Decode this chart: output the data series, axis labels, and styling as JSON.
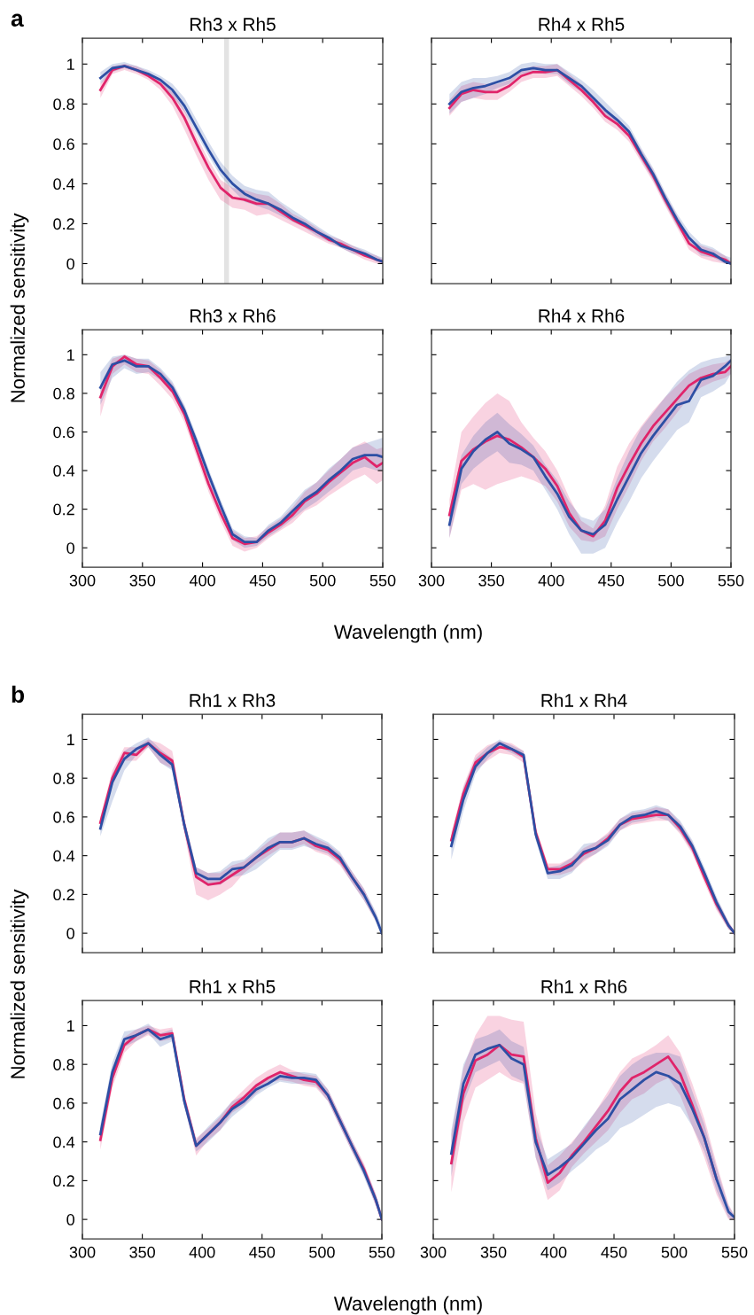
{
  "chart_data": [
    {
      "type": "line",
      "title": "Rh3 x Rh5",
      "ylabel": "Normalized sensitivity",
      "annotations": [
        "a"
      ],
      "xlim": [
        300,
        550
      ],
      "ylim": [
        -0.1,
        1.13
      ],
      "xticks": [
        300,
        350,
        400,
        450,
        500,
        550
      ],
      "yticks": [
        0,
        0.2,
        0.4,
        0.6,
        0.8,
        1
      ],
      "tick_labels": "y",
      "x": [
        315,
        325,
        335,
        345,
        355,
        365,
        375,
        385,
        395,
        405,
        415,
        425,
        435,
        445,
        455,
        465,
        475,
        485,
        495,
        505,
        515,
        525,
        535,
        545,
        550
      ],
      "bands": [
        {
          "axis": "x",
          "from": 418,
          "to": 422,
          "color": "#e3e3e3"
        }
      ],
      "series": [
        {
          "color": "#e0246a",
          "values": [
            0.87,
            0.97,
            0.99,
            0.97,
            0.94,
            0.9,
            0.83,
            0.73,
            0.6,
            0.48,
            0.38,
            0.33,
            0.32,
            0.3,
            0.3,
            0.26,
            0.22,
            0.19,
            0.16,
            0.12,
            0.1,
            0.07,
            0.04,
            0.02,
            0.01
          ],
          "lower": [
            0.83,
            0.95,
            0.97,
            0.95,
            0.92,
            0.87,
            0.79,
            0.67,
            0.54,
            0.42,
            0.32,
            0.28,
            0.27,
            0.24,
            0.25,
            0.22,
            0.19,
            0.16,
            0.13,
            0.1,
            0.08,
            0.05,
            0.02,
            0.0,
            0.0
          ],
          "upper": [
            0.9,
            0.99,
            1.0,
            0.99,
            0.96,
            0.92,
            0.86,
            0.77,
            0.64,
            0.52,
            0.42,
            0.38,
            0.37,
            0.35,
            0.34,
            0.3,
            0.25,
            0.22,
            0.18,
            0.14,
            0.12,
            0.09,
            0.06,
            0.04,
            0.02
          ]
        },
        {
          "color": "#2d4fa4",
          "values": [
            0.93,
            0.98,
            0.99,
            0.97,
            0.95,
            0.92,
            0.87,
            0.79,
            0.68,
            0.57,
            0.47,
            0.4,
            0.35,
            0.32,
            0.3,
            0.27,
            0.23,
            0.2,
            0.16,
            0.13,
            0.09,
            0.07,
            0.05,
            0.02,
            0.01
          ],
          "lower": [
            0.9,
            0.96,
            0.98,
            0.96,
            0.94,
            0.9,
            0.84,
            0.76,
            0.65,
            0.54,
            0.44,
            0.37,
            0.31,
            0.29,
            0.27,
            0.24,
            0.21,
            0.18,
            0.14,
            0.11,
            0.08,
            0.05,
            0.04,
            0.01,
            0.0
          ],
          "upper": [
            0.96,
            1.0,
            1.01,
            0.99,
            0.97,
            0.94,
            0.9,
            0.83,
            0.72,
            0.61,
            0.51,
            0.44,
            0.39,
            0.37,
            0.36,
            0.31,
            0.27,
            0.23,
            0.19,
            0.15,
            0.12,
            0.09,
            0.07,
            0.04,
            0.03
          ]
        }
      ]
    },
    {
      "type": "line",
      "title": "Rh4 x Rh5",
      "xlim": [
        300,
        550
      ],
      "ylim": [
        -0.1,
        1.13
      ],
      "xticks": [
        300,
        350,
        400,
        450,
        500,
        550
      ],
      "yticks": [
        0,
        0.2,
        0.4,
        0.6,
        0.8,
        1
      ],
      "tick_labels": false,
      "x": [
        315,
        325,
        335,
        345,
        355,
        365,
        375,
        385,
        395,
        405,
        415,
        425,
        435,
        445,
        455,
        465,
        475,
        485,
        495,
        505,
        515,
        525,
        535,
        545,
        550
      ],
      "series": [
        {
          "color": "#e0246a",
          "values": [
            0.78,
            0.85,
            0.87,
            0.86,
            0.86,
            0.89,
            0.94,
            0.96,
            0.96,
            0.97,
            0.92,
            0.87,
            0.81,
            0.74,
            0.7,
            0.64,
            0.54,
            0.44,
            0.32,
            0.21,
            0.1,
            0.06,
            0.04,
            0.02,
            0.0
          ],
          "lower": [
            0.74,
            0.81,
            0.83,
            0.82,
            0.82,
            0.86,
            0.91,
            0.93,
            0.93,
            0.94,
            0.89,
            0.84,
            0.78,
            0.71,
            0.67,
            0.61,
            0.51,
            0.41,
            0.29,
            0.18,
            0.07,
            0.03,
            0.01,
            0.0,
            0.0
          ],
          "upper": [
            0.82,
            0.89,
            0.91,
            0.9,
            0.9,
            0.92,
            0.97,
            0.99,
            0.99,
            1.0,
            0.95,
            0.9,
            0.84,
            0.77,
            0.73,
            0.67,
            0.57,
            0.47,
            0.35,
            0.24,
            0.13,
            0.09,
            0.07,
            0.04,
            0.01
          ]
        },
        {
          "color": "#2d4fa4",
          "values": [
            0.8,
            0.86,
            0.88,
            0.89,
            0.91,
            0.93,
            0.97,
            0.98,
            0.97,
            0.97,
            0.93,
            0.89,
            0.83,
            0.77,
            0.72,
            0.66,
            0.55,
            0.45,
            0.33,
            0.22,
            0.13,
            0.07,
            0.05,
            0.01,
            0.0
          ],
          "lower": [
            0.75,
            0.81,
            0.83,
            0.85,
            0.88,
            0.9,
            0.95,
            0.96,
            0.95,
            0.95,
            0.9,
            0.86,
            0.8,
            0.74,
            0.69,
            0.63,
            0.52,
            0.42,
            0.3,
            0.19,
            0.1,
            0.04,
            0.03,
            0.0,
            0.0
          ],
          "upper": [
            0.85,
            0.91,
            0.93,
            0.93,
            0.94,
            0.96,
            1.0,
            1.01,
            1.0,
            1.0,
            0.96,
            0.92,
            0.87,
            0.81,
            0.75,
            0.69,
            0.58,
            0.48,
            0.36,
            0.25,
            0.16,
            0.1,
            0.08,
            0.04,
            0.03
          ]
        }
      ]
    },
    {
      "type": "line",
      "title": "Rh3 x Rh6",
      "xlabel": "Wavelength (nm)",
      "xlim": [
        300,
        550
      ],
      "ylim": [
        -0.1,
        1.13
      ],
      "xticks": [
        300,
        350,
        400,
        450,
        500,
        550
      ],
      "yticks": [
        0,
        0.2,
        0.4,
        0.6,
        0.8,
        1
      ],
      "x": [
        315,
        325,
        335,
        345,
        355,
        365,
        375,
        385,
        395,
        405,
        415,
        425,
        435,
        445,
        455,
        465,
        475,
        485,
        495,
        505,
        515,
        525,
        535,
        545,
        550
      ],
      "series": [
        {
          "color": "#e0246a",
          "values": [
            0.78,
            0.94,
            0.99,
            0.95,
            0.94,
            0.88,
            0.81,
            0.69,
            0.51,
            0.33,
            0.18,
            0.05,
            0.02,
            0.03,
            0.08,
            0.12,
            0.17,
            0.24,
            0.28,
            0.34,
            0.39,
            0.44,
            0.47,
            0.42,
            0.44
          ],
          "lower": [
            0.68,
            0.9,
            0.95,
            0.91,
            0.9,
            0.84,
            0.77,
            0.65,
            0.47,
            0.29,
            0.14,
            0.01,
            -0.02,
            0.0,
            0.05,
            0.09,
            0.13,
            0.19,
            0.22,
            0.27,
            0.31,
            0.35,
            0.38,
            0.33,
            0.35
          ],
          "upper": [
            0.84,
            0.98,
            1.0,
            0.98,
            0.97,
            0.92,
            0.85,
            0.73,
            0.55,
            0.37,
            0.22,
            0.09,
            0.05,
            0.06,
            0.11,
            0.15,
            0.21,
            0.29,
            0.34,
            0.4,
            0.46,
            0.52,
            0.55,
            0.51,
            0.52
          ]
        },
        {
          "color": "#2d4fa4",
          "values": [
            0.83,
            0.95,
            0.97,
            0.94,
            0.94,
            0.9,
            0.83,
            0.71,
            0.55,
            0.38,
            0.22,
            0.07,
            0.03,
            0.03,
            0.09,
            0.13,
            0.19,
            0.25,
            0.29,
            0.35,
            0.4,
            0.46,
            0.48,
            0.48,
            0.47
          ],
          "lower": [
            0.74,
            0.88,
            0.93,
            0.9,
            0.91,
            0.87,
            0.8,
            0.68,
            0.52,
            0.35,
            0.19,
            0.04,
            0.0,
            0.01,
            0.06,
            0.1,
            0.15,
            0.2,
            0.24,
            0.29,
            0.34,
            0.4,
            0.42,
            0.4,
            0.4
          ],
          "upper": [
            0.91,
            0.99,
            1.0,
            0.98,
            0.98,
            0.93,
            0.86,
            0.74,
            0.58,
            0.41,
            0.25,
            0.1,
            0.06,
            0.05,
            0.12,
            0.16,
            0.23,
            0.3,
            0.34,
            0.41,
            0.46,
            0.52,
            0.54,
            0.56,
            0.57
          ]
        }
      ]
    },
    {
      "type": "line",
      "title": "Rh4 x Rh6",
      "xlim": [
        300,
        550
      ],
      "ylim": [
        -0.1,
        1.13
      ],
      "xticks": [
        300,
        350,
        400,
        450,
        500,
        550
      ],
      "yticks": [
        0,
        0.2,
        0.4,
        0.6,
        0.8,
        1
      ],
      "tick_labels": "x",
      "x": [
        315,
        325,
        335,
        345,
        355,
        365,
        375,
        385,
        395,
        405,
        415,
        425,
        435,
        445,
        455,
        465,
        475,
        485,
        495,
        505,
        515,
        525,
        535,
        545,
        550
      ],
      "series": [
        {
          "color": "#e0246a",
          "values": [
            0.17,
            0.45,
            0.51,
            0.55,
            0.58,
            0.56,
            0.52,
            0.47,
            0.41,
            0.32,
            0.18,
            0.09,
            0.06,
            0.14,
            0.31,
            0.43,
            0.54,
            0.63,
            0.7,
            0.77,
            0.84,
            0.88,
            0.9,
            0.91,
            0.94
          ],
          "lower": [
            0.05,
            0.3,
            0.33,
            0.3,
            0.33,
            0.35,
            0.37,
            0.35,
            0.32,
            0.24,
            0.11,
            0.04,
            0.03,
            0.06,
            0.2,
            0.32,
            0.45,
            0.55,
            0.62,
            0.7,
            0.78,
            0.83,
            0.86,
            0.88,
            0.9
          ],
          "upper": [
            0.25,
            0.6,
            0.68,
            0.75,
            0.8,
            0.76,
            0.65,
            0.57,
            0.5,
            0.4,
            0.26,
            0.14,
            0.1,
            0.22,
            0.42,
            0.54,
            0.63,
            0.71,
            0.78,
            0.84,
            0.9,
            0.93,
            0.95,
            0.96,
            0.98
          ]
        },
        {
          "color": "#2d4fa4",
          "values": [
            0.12,
            0.41,
            0.5,
            0.56,
            0.6,
            0.54,
            0.51,
            0.47,
            0.37,
            0.28,
            0.16,
            0.09,
            0.07,
            0.12,
            0.25,
            0.37,
            0.49,
            0.58,
            0.66,
            0.74,
            0.76,
            0.87,
            0.89,
            0.94,
            0.97
          ],
          "lower": [
            0.05,
            0.33,
            0.41,
            0.46,
            0.5,
            0.44,
            0.43,
            0.4,
            0.3,
            0.2,
            0.07,
            -0.03,
            -0.03,
            0.0,
            0.13,
            0.24,
            0.36,
            0.45,
            0.53,
            0.61,
            0.65,
            0.78,
            0.81,
            0.85,
            0.9
          ],
          "upper": [
            0.2,
            0.48,
            0.58,
            0.65,
            0.7,
            0.64,
            0.59,
            0.53,
            0.43,
            0.35,
            0.24,
            0.16,
            0.14,
            0.2,
            0.36,
            0.5,
            0.62,
            0.7,
            0.78,
            0.86,
            0.92,
            0.96,
            0.98,
            0.99,
            1.0
          ]
        }
      ]
    },
    {
      "type": "line",
      "title": "Rh1 x Rh3",
      "ylabel": "Normalized sensitivity",
      "annotations": [
        "b"
      ],
      "xlim": [
        300,
        550
      ],
      "ylim": [
        -0.1,
        1.13
      ],
      "xticks": [
        300,
        350,
        400,
        450,
        500,
        550
      ],
      "yticks": [
        0,
        0.2,
        0.4,
        0.6,
        0.8,
        1
      ],
      "tick_labels": "y",
      "x": [
        315,
        325,
        335,
        345,
        355,
        365,
        375,
        385,
        395,
        405,
        415,
        425,
        435,
        445,
        455,
        465,
        475,
        485,
        495,
        505,
        515,
        525,
        535,
        545,
        550
      ],
      "series": [
        {
          "color": "#e0246a",
          "values": [
            0.57,
            0.8,
            0.93,
            0.92,
            0.98,
            0.93,
            0.89,
            0.56,
            0.29,
            0.25,
            0.26,
            0.3,
            0.34,
            0.39,
            0.43,
            0.47,
            0.47,
            0.49,
            0.45,
            0.43,
            0.38,
            0.29,
            0.2,
            null,
            null
          ],
          "lower": [
            0.54,
            0.76,
            0.89,
            0.89,
            0.96,
            0.88,
            0.85,
            0.52,
            0.2,
            0.17,
            0.2,
            0.24,
            0.31,
            0.36,
            0.4,
            0.44,
            0.44,
            0.46,
            0.42,
            0.4,
            0.35,
            0.26,
            0.17,
            0.06,
            0.0
          ],
          "upper": [
            0.6,
            0.84,
            0.96,
            0.96,
            1.0,
            0.98,
            0.94,
            0.6,
            0.34,
            0.31,
            0.31,
            0.35,
            0.37,
            0.42,
            0.47,
            0.52,
            0.52,
            0.53,
            0.49,
            0.46,
            0.41,
            0.32,
            0.23,
            0.1,
            0.01
          ]
        },
        {
          "color": "#2d4fa4",
          "values": [
            0.54,
            0.78,
            0.9,
            0.95,
            0.98,
            0.92,
            0.87,
            0.56,
            0.31,
            0.28,
            0.28,
            0.33,
            0.34,
            0.39,
            0.44,
            0.47,
            0.47,
            0.49,
            0.46,
            0.44,
            0.39,
            0.29,
            0.2,
            0.08,
            0.0
          ],
          "lower": [
            0.5,
            0.68,
            0.84,
            0.92,
            0.96,
            0.88,
            0.84,
            0.53,
            0.28,
            0.25,
            0.25,
            0.29,
            0.3,
            0.33,
            0.38,
            0.43,
            0.43,
            0.45,
            0.43,
            0.41,
            0.36,
            0.26,
            0.17,
            0.06,
            0.0
          ],
          "upper": [
            0.58,
            0.82,
            0.94,
            0.98,
            1.01,
            0.95,
            0.9,
            0.59,
            0.34,
            0.31,
            0.32,
            0.37,
            0.38,
            0.43,
            0.49,
            0.52,
            0.52,
            0.53,
            0.5,
            0.47,
            0.42,
            0.32,
            0.23,
            0.11,
            0.03
          ]
        }
      ]
    },
    {
      "type": "line",
      "title": "Rh1 x Rh4",
      "xlim": [
        300,
        550
      ],
      "ylim": [
        -0.1,
        1.13
      ],
      "xticks": [
        300,
        350,
        400,
        450,
        500,
        550
      ],
      "yticks": [
        0,
        0.2,
        0.4,
        0.6,
        0.8,
        1
      ],
      "tick_labels": false,
      "x": [
        315,
        325,
        335,
        345,
        355,
        365,
        375,
        385,
        395,
        405,
        415,
        425,
        435,
        445,
        455,
        465,
        475,
        485,
        495,
        505,
        515,
        525,
        535,
        545,
        550
      ],
      "series": [
        {
          "color": "#e0246a",
          "values": [
            0.48,
            0.72,
            0.88,
            0.93,
            0.96,
            0.95,
            0.91,
            0.52,
            0.33,
            0.33,
            0.36,
            0.41,
            0.44,
            0.49,
            0.56,
            0.59,
            0.6,
            0.61,
            0.61,
            0.54,
            0.44,
            0.29,
            0.15,
            0.04,
            0.0
          ],
          "lower": [
            0.44,
            0.68,
            0.84,
            0.89,
            0.93,
            0.92,
            0.88,
            0.49,
            0.3,
            0.3,
            0.32,
            0.37,
            0.41,
            0.46,
            0.53,
            0.56,
            0.57,
            0.58,
            0.58,
            0.51,
            0.41,
            0.26,
            0.12,
            0.02,
            0.0
          ],
          "upper": [
            0.52,
            0.76,
            0.92,
            0.97,
            0.99,
            0.98,
            0.94,
            0.55,
            0.36,
            0.36,
            0.39,
            0.44,
            0.47,
            0.52,
            0.59,
            0.62,
            0.63,
            0.65,
            0.64,
            0.57,
            0.47,
            0.32,
            0.18,
            0.06,
            0.01
          ]
        },
        {
          "color": "#2d4fa4",
          "values": [
            0.45,
            0.69,
            0.86,
            0.93,
            0.98,
            0.95,
            0.92,
            0.51,
            0.31,
            0.32,
            0.35,
            0.42,
            0.44,
            0.48,
            0.56,
            0.6,
            0.61,
            0.63,
            0.61,
            0.55,
            0.45,
            0.31,
            0.16,
            0.04,
            0.0
          ],
          "lower": [
            0.38,
            0.63,
            0.82,
            0.9,
            0.96,
            0.93,
            0.9,
            0.48,
            0.28,
            0.28,
            0.31,
            0.38,
            0.41,
            0.45,
            0.53,
            0.57,
            0.58,
            0.6,
            0.58,
            0.52,
            0.42,
            0.28,
            0.13,
            0.02,
            0.0
          ],
          "upper": [
            0.5,
            0.75,
            0.9,
            0.96,
            1.0,
            0.97,
            0.94,
            0.54,
            0.34,
            0.35,
            0.39,
            0.46,
            0.47,
            0.51,
            0.59,
            0.63,
            0.64,
            0.66,
            0.64,
            0.58,
            0.48,
            0.34,
            0.19,
            0.06,
            0.01
          ]
        }
      ]
    },
    {
      "type": "line",
      "title": "Rh1 x Rh5",
      "xlabel": "Wavelength (nm)",
      "xlim": [
        300,
        550
      ],
      "ylim": [
        -0.1,
        1.13
      ],
      "xticks": [
        300,
        350,
        400,
        450,
        500,
        550
      ],
      "yticks": [
        0,
        0.2,
        0.4,
        0.6,
        0.8,
        1
      ],
      "x": [
        315,
        325,
        335,
        345,
        355,
        365,
        375,
        385,
        395,
        405,
        415,
        425,
        435,
        445,
        455,
        465,
        475,
        485,
        495,
        505,
        515,
        525,
        535,
        545,
        550
      ],
      "series": [
        {
          "color": "#e0246a",
          "values": [
            0.41,
            0.73,
            0.9,
            0.95,
            0.98,
            0.95,
            0.96,
            0.62,
            0.38,
            0.44,
            0.5,
            0.58,
            0.63,
            0.69,
            0.73,
            0.76,
            0.74,
            0.72,
            0.71,
            0.64,
            0.51,
            0.38,
            0.26,
            0.1,
            0.0
          ],
          "lower": [
            0.36,
            0.68,
            0.86,
            0.92,
            0.95,
            0.92,
            0.93,
            0.59,
            0.33,
            0.41,
            0.46,
            0.55,
            0.59,
            0.65,
            0.7,
            0.72,
            0.71,
            0.69,
            0.68,
            0.61,
            0.48,
            0.35,
            0.23,
            0.07,
            0.0
          ],
          "upper": [
            0.46,
            0.78,
            0.94,
            0.98,
            1.0,
            0.98,
            0.99,
            0.65,
            0.42,
            0.47,
            0.53,
            0.61,
            0.67,
            0.73,
            0.77,
            0.8,
            0.77,
            0.75,
            0.74,
            0.67,
            0.54,
            0.41,
            0.29,
            0.13,
            0.01
          ]
        },
        {
          "color": "#2d4fa4",
          "values": [
            0.44,
            0.76,
            0.93,
            0.95,
            0.98,
            0.93,
            0.95,
            0.61,
            0.38,
            0.44,
            0.5,
            0.57,
            0.61,
            0.67,
            0.7,
            0.74,
            0.73,
            0.73,
            0.72,
            0.64,
            0.51,
            0.38,
            0.25,
            0.1,
            0.0
          ],
          "lower": [
            0.4,
            0.71,
            0.89,
            0.92,
            0.96,
            0.89,
            0.92,
            0.58,
            0.35,
            0.4,
            0.46,
            0.53,
            0.58,
            0.64,
            0.68,
            0.71,
            0.7,
            0.7,
            0.69,
            0.61,
            0.48,
            0.35,
            0.22,
            0.07,
            0.0
          ],
          "upper": [
            0.49,
            0.81,
            0.97,
            0.98,
            1.01,
            0.96,
            0.98,
            0.64,
            0.41,
            0.48,
            0.54,
            0.61,
            0.64,
            0.7,
            0.73,
            0.76,
            0.76,
            0.76,
            0.75,
            0.67,
            0.54,
            0.41,
            0.28,
            0.13,
            0.03
          ]
        }
      ]
    },
    {
      "type": "line",
      "title": "Rh1 x Rh6",
      "xlim": [
        300,
        550
      ],
      "ylim": [
        -0.1,
        1.13
      ],
      "xticks": [
        300,
        350,
        400,
        450,
        500,
        550
      ],
      "yticks": [
        0,
        0.2,
        0.4,
        0.6,
        0.8,
        1
      ],
      "tick_labels": "x",
      "x": [
        315,
        325,
        335,
        345,
        355,
        365,
        375,
        385,
        395,
        405,
        415,
        425,
        435,
        445,
        455,
        465,
        475,
        485,
        495,
        505,
        515,
        525,
        535,
        545,
        550
      ],
      "series": [
        {
          "color": "#e0246a",
          "values": [
            0.29,
            0.65,
            0.82,
            0.85,
            0.9,
            0.85,
            0.84,
            0.42,
            0.19,
            0.24,
            0.33,
            0.4,
            0.48,
            0.56,
            0.66,
            0.73,
            0.76,
            0.8,
            0.84,
            0.75,
            0.59,
            0.42,
            0.21,
            null,
            null
          ],
          "lower": [
            0.14,
            0.5,
            0.68,
            0.72,
            0.76,
            0.72,
            0.7,
            0.32,
            0.1,
            0.15,
            0.27,
            0.34,
            0.4,
            0.46,
            0.55,
            0.62,
            0.65,
            0.7,
            0.73,
            0.64,
            0.48,
            0.32,
            0.13,
            0.0,
            0.0
          ],
          "upper": [
            0.44,
            0.78,
            0.95,
            1.05,
            1.05,
            1.03,
            1.02,
            0.55,
            0.28,
            0.33,
            0.4,
            0.47,
            0.56,
            0.66,
            0.76,
            0.83,
            0.86,
            0.9,
            0.95,
            0.86,
            0.7,
            0.52,
            0.29,
            0.08,
            0.02
          ]
        },
        {
          "color": "#2d4fa4",
          "values": [
            0.34,
            0.7,
            0.85,
            0.88,
            0.9,
            0.83,
            0.8,
            0.4,
            0.23,
            0.27,
            0.32,
            0.39,
            0.46,
            0.52,
            0.62,
            0.67,
            0.72,
            0.76,
            0.74,
            0.7,
            0.57,
            0.42,
            0.21,
            0.04,
            0.01
          ],
          "lower": [
            0.22,
            0.6,
            0.76,
            0.79,
            0.82,
            0.74,
            0.71,
            0.32,
            0.15,
            0.19,
            0.25,
            0.3,
            0.36,
            0.4,
            0.47,
            0.5,
            0.54,
            0.58,
            0.6,
            0.58,
            0.48,
            0.35,
            0.15,
            0.01,
            0.0
          ],
          "upper": [
            0.46,
            0.8,
            0.93,
            0.95,
            0.98,
            0.92,
            0.89,
            0.48,
            0.31,
            0.35,
            0.39,
            0.48,
            0.56,
            0.64,
            0.74,
            0.8,
            0.84,
            0.86,
            0.86,
            0.84,
            0.66,
            0.49,
            0.27,
            0.07,
            0.02
          ]
        }
      ]
    }
  ]
}
